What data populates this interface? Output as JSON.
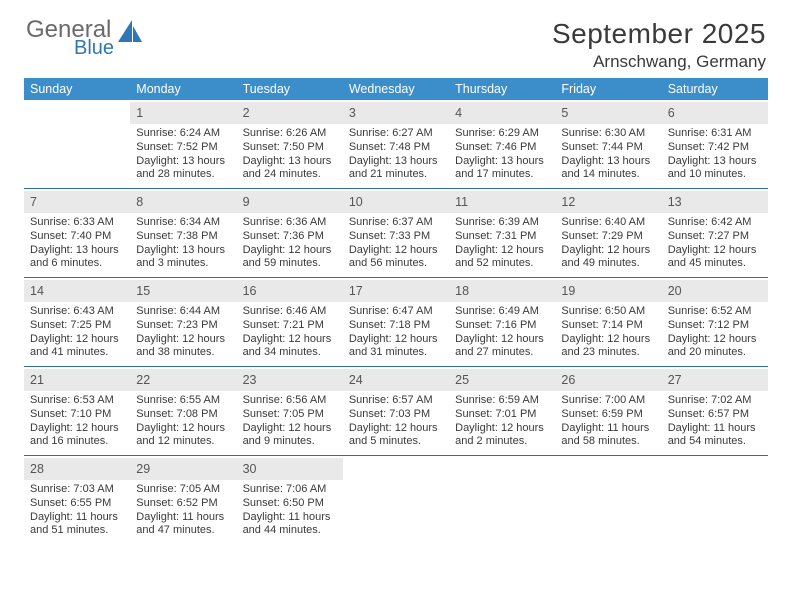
{
  "logo": {
    "line1": "General",
    "line2": "Blue",
    "tri_color": "#2f76b6"
  },
  "header": {
    "month_year": "September 2025",
    "location": "Arnschwang, Germany"
  },
  "colors": {
    "header_bg": "#3c8ecb",
    "header_text": "#ffffff",
    "daynum_bg": "#e9e9e9",
    "week_border": "#2f6ea4",
    "text": "#3a3a3a"
  },
  "dayNames": [
    "Sunday",
    "Monday",
    "Tuesday",
    "Wednesday",
    "Thursday",
    "Friday",
    "Saturday"
  ],
  "weeks": [
    [
      null,
      {
        "n": "1",
        "sr": "Sunrise: 6:24 AM",
        "ss": "Sunset: 7:52 PM",
        "d1": "Daylight: 13 hours",
        "d2": "and 28 minutes."
      },
      {
        "n": "2",
        "sr": "Sunrise: 6:26 AM",
        "ss": "Sunset: 7:50 PM",
        "d1": "Daylight: 13 hours",
        "d2": "and 24 minutes."
      },
      {
        "n": "3",
        "sr": "Sunrise: 6:27 AM",
        "ss": "Sunset: 7:48 PM",
        "d1": "Daylight: 13 hours",
        "d2": "and 21 minutes."
      },
      {
        "n": "4",
        "sr": "Sunrise: 6:29 AM",
        "ss": "Sunset: 7:46 PM",
        "d1": "Daylight: 13 hours",
        "d2": "and 17 minutes."
      },
      {
        "n": "5",
        "sr": "Sunrise: 6:30 AM",
        "ss": "Sunset: 7:44 PM",
        "d1": "Daylight: 13 hours",
        "d2": "and 14 minutes."
      },
      {
        "n": "6",
        "sr": "Sunrise: 6:31 AM",
        "ss": "Sunset: 7:42 PM",
        "d1": "Daylight: 13 hours",
        "d2": "and 10 minutes."
      }
    ],
    [
      {
        "n": "7",
        "sr": "Sunrise: 6:33 AM",
        "ss": "Sunset: 7:40 PM",
        "d1": "Daylight: 13 hours",
        "d2": "and 6 minutes."
      },
      {
        "n": "8",
        "sr": "Sunrise: 6:34 AM",
        "ss": "Sunset: 7:38 PM",
        "d1": "Daylight: 13 hours",
        "d2": "and 3 minutes."
      },
      {
        "n": "9",
        "sr": "Sunrise: 6:36 AM",
        "ss": "Sunset: 7:36 PM",
        "d1": "Daylight: 12 hours",
        "d2": "and 59 minutes."
      },
      {
        "n": "10",
        "sr": "Sunrise: 6:37 AM",
        "ss": "Sunset: 7:33 PM",
        "d1": "Daylight: 12 hours",
        "d2": "and 56 minutes."
      },
      {
        "n": "11",
        "sr": "Sunrise: 6:39 AM",
        "ss": "Sunset: 7:31 PM",
        "d1": "Daylight: 12 hours",
        "d2": "and 52 minutes."
      },
      {
        "n": "12",
        "sr": "Sunrise: 6:40 AM",
        "ss": "Sunset: 7:29 PM",
        "d1": "Daylight: 12 hours",
        "d2": "and 49 minutes."
      },
      {
        "n": "13",
        "sr": "Sunrise: 6:42 AM",
        "ss": "Sunset: 7:27 PM",
        "d1": "Daylight: 12 hours",
        "d2": "and 45 minutes."
      }
    ],
    [
      {
        "n": "14",
        "sr": "Sunrise: 6:43 AM",
        "ss": "Sunset: 7:25 PM",
        "d1": "Daylight: 12 hours",
        "d2": "and 41 minutes."
      },
      {
        "n": "15",
        "sr": "Sunrise: 6:44 AM",
        "ss": "Sunset: 7:23 PM",
        "d1": "Daylight: 12 hours",
        "d2": "and 38 minutes."
      },
      {
        "n": "16",
        "sr": "Sunrise: 6:46 AM",
        "ss": "Sunset: 7:21 PM",
        "d1": "Daylight: 12 hours",
        "d2": "and 34 minutes."
      },
      {
        "n": "17",
        "sr": "Sunrise: 6:47 AM",
        "ss": "Sunset: 7:18 PM",
        "d1": "Daylight: 12 hours",
        "d2": "and 31 minutes."
      },
      {
        "n": "18",
        "sr": "Sunrise: 6:49 AM",
        "ss": "Sunset: 7:16 PM",
        "d1": "Daylight: 12 hours",
        "d2": "and 27 minutes."
      },
      {
        "n": "19",
        "sr": "Sunrise: 6:50 AM",
        "ss": "Sunset: 7:14 PM",
        "d1": "Daylight: 12 hours",
        "d2": "and 23 minutes."
      },
      {
        "n": "20",
        "sr": "Sunrise: 6:52 AM",
        "ss": "Sunset: 7:12 PM",
        "d1": "Daylight: 12 hours",
        "d2": "and 20 minutes."
      }
    ],
    [
      {
        "n": "21",
        "sr": "Sunrise: 6:53 AM",
        "ss": "Sunset: 7:10 PM",
        "d1": "Daylight: 12 hours",
        "d2": "and 16 minutes."
      },
      {
        "n": "22",
        "sr": "Sunrise: 6:55 AM",
        "ss": "Sunset: 7:08 PM",
        "d1": "Daylight: 12 hours",
        "d2": "and 12 minutes."
      },
      {
        "n": "23",
        "sr": "Sunrise: 6:56 AM",
        "ss": "Sunset: 7:05 PM",
        "d1": "Daylight: 12 hours",
        "d2": "and 9 minutes."
      },
      {
        "n": "24",
        "sr": "Sunrise: 6:57 AM",
        "ss": "Sunset: 7:03 PM",
        "d1": "Daylight: 12 hours",
        "d2": "and 5 minutes."
      },
      {
        "n": "25",
        "sr": "Sunrise: 6:59 AM",
        "ss": "Sunset: 7:01 PM",
        "d1": "Daylight: 12 hours",
        "d2": "and 2 minutes."
      },
      {
        "n": "26",
        "sr": "Sunrise: 7:00 AM",
        "ss": "Sunset: 6:59 PM",
        "d1": "Daylight: 11 hours",
        "d2": "and 58 minutes."
      },
      {
        "n": "27",
        "sr": "Sunrise: 7:02 AM",
        "ss": "Sunset: 6:57 PM",
        "d1": "Daylight: 11 hours",
        "d2": "and 54 minutes."
      }
    ],
    [
      {
        "n": "28",
        "sr": "Sunrise: 7:03 AM",
        "ss": "Sunset: 6:55 PM",
        "d1": "Daylight: 11 hours",
        "d2": "and 51 minutes."
      },
      {
        "n": "29",
        "sr": "Sunrise: 7:05 AM",
        "ss": "Sunset: 6:52 PM",
        "d1": "Daylight: 11 hours",
        "d2": "and 47 minutes."
      },
      {
        "n": "30",
        "sr": "Sunrise: 7:06 AM",
        "ss": "Sunset: 6:50 PM",
        "d1": "Daylight: 11 hours",
        "d2": "and 44 minutes."
      },
      null,
      null,
      null,
      null
    ]
  ]
}
